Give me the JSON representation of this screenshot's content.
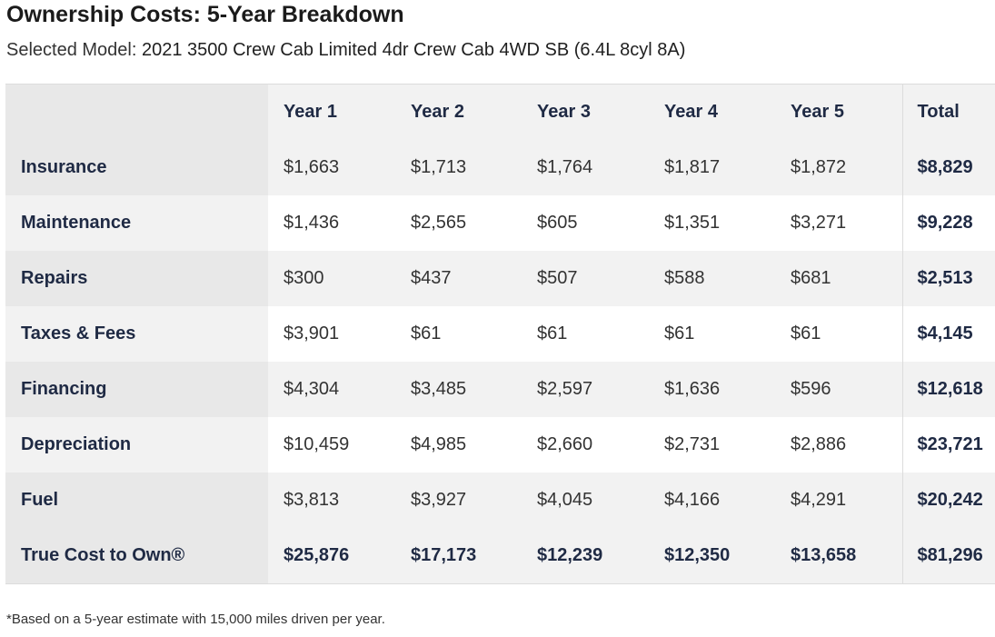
{
  "title": "Ownership Costs: 5-Year Breakdown",
  "subtitle": {
    "label": "Selected Model:",
    "value": "2021 3500 Crew Cab Limited 4dr Crew Cab 4WD SB (6.4L 8cyl 8A)"
  },
  "table": {
    "headers": [
      "Year 1",
      "Year 2",
      "Year 3",
      "Year 4",
      "Year 5",
      "Total"
    ],
    "rows": [
      {
        "label": "Insurance",
        "values": [
          "$1,663",
          "$1,713",
          "$1,764",
          "$1,817",
          "$1,872"
        ],
        "total": "$8,829"
      },
      {
        "label": "Maintenance",
        "values": [
          "$1,436",
          "$2,565",
          "$605",
          "$1,351",
          "$3,271"
        ],
        "total": "$9,228"
      },
      {
        "label": "Repairs",
        "values": [
          "$300",
          "$437",
          "$507",
          "$588",
          "$681"
        ],
        "total": "$2,513"
      },
      {
        "label": "Taxes & Fees",
        "values": [
          "$3,901",
          "$61",
          "$61",
          "$61",
          "$61"
        ],
        "total": "$4,145"
      },
      {
        "label": "Financing",
        "values": [
          "$4,304",
          "$3,485",
          "$2,597",
          "$1,636",
          "$596"
        ],
        "total": "$12,618"
      },
      {
        "label": "Depreciation",
        "values": [
          "$10,459",
          "$4,985",
          "$2,660",
          "$2,731",
          "$2,886"
        ],
        "total": "$23,721"
      },
      {
        "label": "Fuel",
        "values": [
          "$3,813",
          "$3,927",
          "$4,045",
          "$4,166",
          "$4,291"
        ],
        "total": "$20,242"
      },
      {
        "label": "True Cost to Own®",
        "values": [
          "$25,876",
          "$17,173",
          "$12,239",
          "$12,350",
          "$13,658"
        ],
        "total": "$81,296"
      }
    ]
  },
  "footnote": "*Based on a 5-year estimate with 15,000 miles driven per year."
}
